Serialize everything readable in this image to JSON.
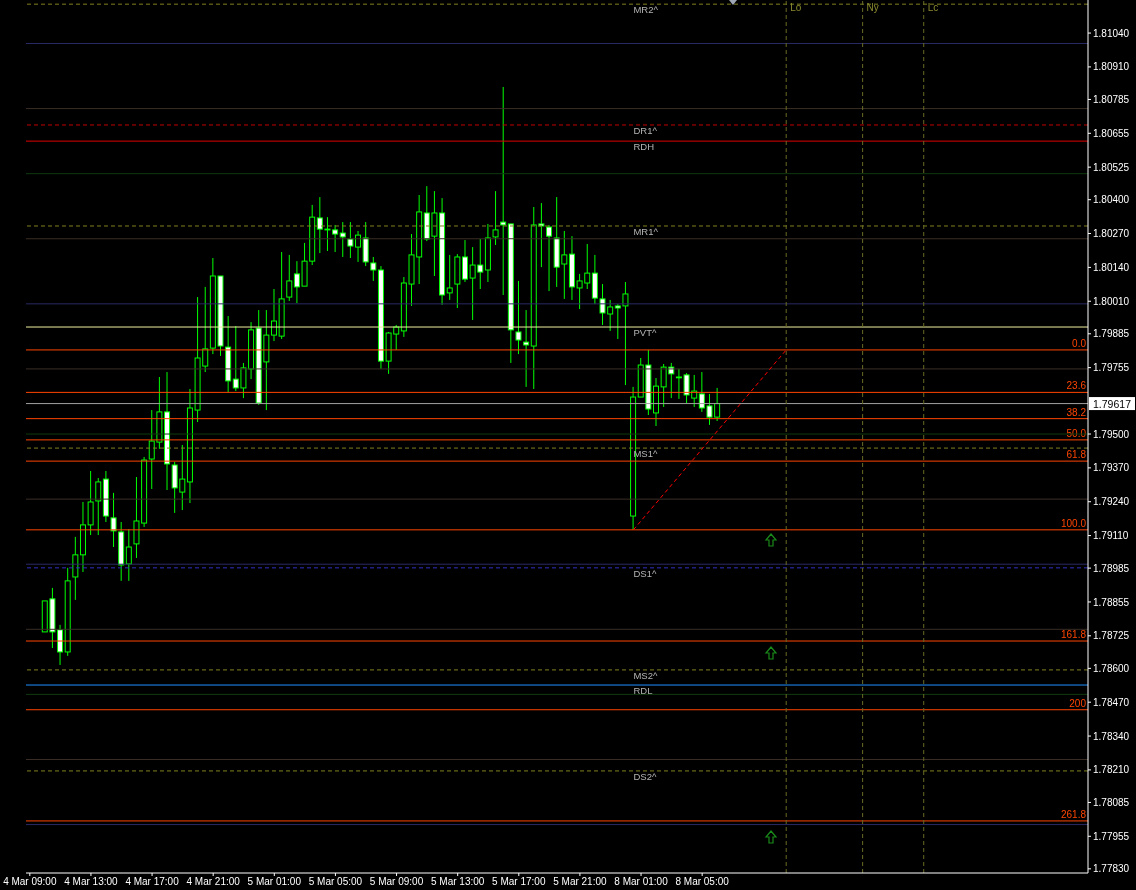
{
  "chart_data": {
    "type": "candlestick",
    "color": "#00ff00",
    "categories": [
      "4 Mar 09:00",
      null,
      null,
      null,
      null,
      null,
      null,
      null,
      "4 Mar 13:00",
      null,
      null,
      null,
      null,
      null,
      null,
      null,
      "4 Mar 17:00",
      null,
      null,
      null,
      null,
      null,
      null,
      null,
      "4 Mar 21:00",
      null,
      null,
      null,
      null,
      null,
      null,
      null,
      "5 Mar 01:00",
      null,
      null,
      null,
      null,
      null,
      null,
      null,
      "5 Mar 05:00",
      null,
      null,
      null,
      null,
      null,
      null,
      null,
      "5 Mar 09:00",
      null,
      null,
      null,
      null,
      null,
      null,
      null,
      "5 Mar 13:00",
      null,
      null,
      null,
      null,
      null,
      null,
      null,
      "5 Mar 17:00",
      null,
      null,
      null,
      null,
      null,
      null,
      null,
      "5 Mar 21:00",
      null,
      null,
      null,
      null,
      null,
      null,
      null,
      "8 Mar 01:00",
      null,
      null,
      null,
      null,
      null,
      null,
      null,
      "8 Mar 05:00",
      null,
      null,
      null,
      null,
      null,
      null,
      null,
      null,
      null,
      null,
      null,
      null,
      null,
      null,
      null,
      null,
      null,
      null,
      null,
      null,
      null,
      null,
      null,
      null,
      null,
      null,
      null,
      null,
      null,
      null,
      null,
      null,
      null,
      null,
      null,
      null,
      null,
      null,
      null,
      null,
      null,
      null,
      null,
      null,
      null,
      null,
      null,
      null,
      null,
      null
    ],
    "ohlc": [
      null,
      null,
      [
        1.7874,
        1.78859,
        1.7874,
        1.78859
      ],
      [
        1.78867,
        1.78909,
        1.78678,
        1.7874
      ],
      [
        1.78748,
        1.78767,
        1.78613,
        1.78663
      ],
      [
        1.78663,
        1.78986,
        1.78648,
        1.78936
      ],
      [
        1.78951,
        1.79105,
        1.78863,
        1.79036
      ],
      [
        1.79036,
        1.79239,
        1.7897,
        1.79151
      ],
      [
        1.79151,
        1.79358,
        1.79112,
        1.79239
      ],
      [
        1.79243,
        1.79331,
        1.79112,
        1.79316
      ],
      [
        1.79327,
        1.79358,
        1.79162,
        1.79185
      ],
      [
        1.79178,
        1.79274,
        1.79066,
        1.79128
      ],
      [
        1.79124,
        1.79162,
        1.78936,
        1.78997
      ],
      [
        1.79001,
        1.79135,
        1.78936,
        1.79066
      ],
      [
        1.79078,
        1.79335,
        1.79024,
        1.79166
      ],
      [
        1.79158,
        1.79412,
        1.79143,
        1.794
      ],
      [
        1.79404,
        1.79592,
        1.79289,
        1.79473
      ],
      [
        1.79469,
        1.79719,
        1.79443,
        1.79585
      ],
      [
        1.79585,
        1.79738,
        1.79285,
        1.79385
      ],
      [
        1.79381,
        1.79393,
        1.79197,
        1.79293
      ],
      [
        1.79277,
        1.79458,
        1.79208,
        1.79327
      ],
      [
        1.79316,
        1.79673,
        1.79235,
        1.796
      ],
      [
        1.79592,
        1.80026,
        1.79546,
        1.79792
      ],
      [
        1.79761,
        1.80065,
        1.79738,
        1.79827
      ],
      [
        1.7983,
        1.80176,
        1.79807,
        1.80107
      ],
      [
        1.80107,
        1.80107,
        1.798,
        1.79838
      ],
      [
        1.79834,
        1.79953,
        1.79661,
        1.79704
      ],
      [
        1.79711,
        1.79915,
        1.79665,
        1.79677
      ],
      [
        1.79677,
        1.79773,
        1.79638,
        1.79754
      ],
      [
        1.7975,
        1.7993,
        1.79711,
        1.799
      ],
      [
        1.79907,
        1.79976,
        1.79612,
        1.79619
      ],
      [
        1.79777,
        1.79976,
        1.79592,
        1.7988
      ],
      [
        1.7988,
        1.80057,
        1.79857,
        1.79934
      ],
      [
        1.79876,
        1.80199,
        1.79865,
        1.80019
      ],
      [
        1.80026,
        1.80188,
        1.80011,
        1.80088
      ],
      [
        1.80115,
        1.80164,
        1.80003,
        1.80065
      ],
      [
        1.80068,
        1.80234,
        1.80068,
        1.80164
      ],
      [
        1.80164,
        1.8038,
        1.80149,
        1.80333
      ],
      [
        1.8033,
        1.8041,
        1.80195,
        1.80287
      ],
      [
        1.80287,
        1.80333,
        1.80203,
        1.80287
      ],
      [
        1.80284,
        1.80303,
        1.80199,
        1.80268
      ],
      [
        1.80272,
        1.80314,
        1.8018,
        1.80257
      ],
      [
        1.80249,
        1.80314,
        1.80176,
        1.80222
      ],
      [
        1.80218,
        1.8028,
        1.80161,
        1.80264
      ],
      [
        1.80253,
        1.80314,
        1.80145,
        1.80161
      ],
      [
        1.80157,
        1.8018,
        1.80088,
        1.8013
      ],
      [
        1.8013,
        1.80145,
        1.7975,
        1.7978
      ],
      [
        1.7978,
        1.79892,
        1.79731,
        1.79888
      ],
      [
        1.79884,
        1.79919,
        1.79823,
        1.79911
      ],
      [
        1.79896,
        1.80103,
        1.79873,
        1.8008
      ],
      [
        1.80076,
        1.80268,
        1.79992,
        1.80188
      ],
      [
        1.8018,
        1.80418,
        1.80076,
        1.80353
      ],
      [
        1.80349,
        1.80452,
        1.80241,
        1.80249
      ],
      [
        1.8026,
        1.80433,
        1.80107,
        1.80349
      ],
      [
        1.80349,
        1.80406,
        1.79996,
        1.80034
      ],
      [
        1.80042,
        1.80188,
        1.80015,
        1.80061
      ],
      [
        1.80076,
        1.80191,
        1.79984,
        1.8018
      ],
      [
        1.8018,
        1.80245,
        1.80084,
        1.80095
      ],
      [
        1.80099,
        1.80218,
        1.79938,
        1.80149
      ],
      [
        1.80149,
        1.80249,
        1.80057,
        1.80122
      ],
      [
        1.8013,
        1.80307,
        1.80084,
        1.80253
      ],
      [
        1.80257,
        1.80433,
        1.80226,
        1.80284
      ],
      [
        1.80314,
        1.80833,
        1.80034,
        1.80303
      ],
      [
        1.80307,
        1.80307,
        1.79773,
        1.799
      ],
      [
        1.79892,
        1.80088,
        1.79807,
        1.79861
      ],
      [
        1.79853,
        1.79976,
        1.79681,
        1.79842
      ],
      [
        1.79838,
        1.80372,
        1.79673,
        1.80303
      ],
      [
        1.80307,
        1.80387,
        1.80141,
        1.80299
      ],
      [
        1.80295,
        1.80303,
        1.80049,
        1.8026
      ],
      [
        1.80253,
        1.8041,
        1.80065,
        1.80141
      ],
      [
        1.80153,
        1.8028,
        1.80019,
        1.80188
      ],
      [
        1.80191,
        1.8026,
        1.80015,
        1.80065
      ],
      [
        1.80061,
        1.80115,
        1.7998,
        1.80088
      ],
      [
        1.8008,
        1.8023,
        1.80057,
        1.80118
      ],
      [
        1.80118,
        1.80188,
        1.79999,
        1.80022
      ],
      [
        1.80019,
        1.80076,
        1.79919,
        1.79965
      ],
      [
        1.79961,
        1.80015,
        1.79896,
        1.79988
      ],
      [
        1.79992,
        1.79999,
        1.79865,
        1.79984
      ],
      [
        1.79992,
        1.80084,
        1.79688,
        1.80038
      ],
      [
        1.79185,
        1.79681,
        1.79132,
        1.79642
      ],
      [
        1.79642,
        1.79792,
        1.79642,
        1.79765
      ],
      [
        1.79765,
        1.79823,
        1.79573,
        1.79596
      ],
      [
        1.79581,
        1.79715,
        1.79531,
        1.79684
      ],
      [
        1.79681,
        1.79769,
        1.79604,
        1.79757
      ],
      [
        1.79757,
        1.79773,
        1.79638,
        1.79731
      ],
      [
        1.79719,
        1.7975,
        1.79635,
        1.79719
      ],
      [
        1.79727,
        1.79734,
        1.79619,
        1.7965
      ],
      [
        1.79638,
        1.79727,
        1.79604,
        1.79665
      ],
      [
        1.79654,
        1.79738,
        1.79585,
        1.796
      ],
      [
        1.79608,
        1.79654,
        1.79535,
        1.79565
      ],
      [
        1.79565,
        1.79677,
        1.7955,
        1.79617
      ],
      null,
      null,
      null,
      null,
      null,
      null,
      null,
      null,
      null,
      null,
      null,
      null,
      null,
      null,
      null,
      null,
      null,
      null,
      null,
      null,
      null,
      null,
      null,
      null,
      null,
      null,
      null,
      null,
      null,
      null,
      null,
      null,
      null,
      null,
      null,
      null,
      null,
      null,
      null,
      null,
      null,
      null,
      null,
      null,
      null,
      null,
      null,
      null
    ],
    "series": [
      {
        "type": "line",
        "color": "#ff0000",
        "line_style": "dashed",
        "values": [
          null,
          null,
          null,
          null,
          null,
          null,
          null,
          null,
          null,
          null,
          null,
          null,
          null,
          null,
          null,
          null,
          null,
          null,
          null,
          null,
          null,
          null,
          null,
          null,
          null,
          null,
          null,
          null,
          null,
          null,
          null,
          null,
          null,
          null,
          null,
          null,
          null,
          null,
          null,
          null,
          null,
          null,
          null,
          null,
          null,
          null,
          null,
          null,
          null,
          null,
          null,
          null,
          null,
          null,
          null,
          null,
          null,
          null,
          null,
          null,
          null,
          null,
          null,
          null,
          null,
          null,
          null,
          null,
          null,
          null,
          null,
          null,
          null,
          null,
          null,
          null,
          null,
          null,
          null,
          1.79132,
          null,
          null,
          null,
          null,
          null,
          null,
          null,
          null,
          null,
          null,
          null,
          null,
          null,
          null,
          null,
          null,
          null,
          null,
          null,
          1.79823,
          null,
          null,
          null,
          null,
          null,
          null,
          null,
          null,
          null,
          null,
          null,
          null,
          null,
          null,
          null,
          null,
          null,
          null,
          null,
          null,
          null,
          null,
          null,
          null,
          null,
          null,
          null,
          null,
          null,
          null,
          null,
          null,
          null,
          null,
          null,
          null,
          null,
          null,
          null
        ]
      }
    ],
    "ylim": [
      1.77814,
      1.81167
    ],
    "yticks": [
      {
        "value": 1.8104,
        "label": "1.81040"
      },
      {
        "value": 1.8091,
        "label": "1.80910"
      },
      {
        "value": 1.80785,
        "label": "1.80785"
      },
      {
        "value": 1.80655,
        "label": "1.80655"
      },
      {
        "value": 1.80525,
        "label": "1.80525"
      },
      {
        "value": 1.804,
        "label": "1.80400"
      },
      {
        "value": 1.8027,
        "label": "1.80270"
      },
      {
        "value": 1.8014,
        "label": "1.80140"
      },
      {
        "value": 1.8001,
        "label": "1.80010"
      },
      {
        "value": 1.79885,
        "label": "1.79885"
      },
      {
        "value": 1.79755,
        "label": "1.79755"
      },
      {
        "value": 1.795,
        "label": "1.79500"
      },
      {
        "value": 1.7937,
        "label": "1.79370"
      },
      {
        "value": 1.7924,
        "label": "1.79240"
      },
      {
        "value": 1.7911,
        "label": "1.79110"
      },
      {
        "value": 1.78985,
        "label": "1.78985"
      },
      {
        "value": 1.78855,
        "label": "1.78855"
      },
      {
        "value": 1.78725,
        "label": "1.78725"
      },
      {
        "value": 1.786,
        "label": "1.78600"
      },
      {
        "value": 1.7847,
        "label": "1.78470"
      },
      {
        "value": 1.7834,
        "label": "1.78340"
      },
      {
        "value": 1.7821,
        "label": "1.78210"
      },
      {
        "value": 1.78085,
        "label": "1.78085"
      },
      {
        "value": 1.77955,
        "label": "1.77955"
      },
      {
        "value": 1.7783,
        "label": "1.77830"
      }
    ],
    "annotations": [
      "Lo",
      "Ny",
      "Lc"
    ],
    "y2lim": [
      290.74,
      -194.5
    ],
    "ref_lines": [
      {
        "axis": "y",
        "value": 1.81151,
        "label": "MR2^",
        "color": "#808020",
        "line_style": "dashed"
      },
      {
        "axis": "y",
        "value": 1.80687,
        "label": "DR1^",
        "color": "#c00000",
        "line_style": "dashed"
      },
      {
        "axis": "y",
        "value": 1.80625,
        "label": "RDH",
        "color": "#e00000",
        "line_style": "solid"
      },
      {
        "axis": "y",
        "value": 1.80299,
        "label": "MR1^",
        "color": "#808020",
        "line_style": "dashed"
      },
      {
        "axis": "y",
        "value": 1.79911,
        "label": "PVT^",
        "color": "#f0f0a0",
        "line_style": "solid"
      },
      {
        "axis": "y",
        "value": 1.79446,
        "label": "MS1^",
        "color": "#808020",
        "line_style": "dashed"
      },
      {
        "axis": "y",
        "value": 1.78986,
        "label": "DS1^",
        "color": "#3030c0",
        "line_style": "dashed"
      },
      {
        "axis": "y",
        "value": 1.78594,
        "label": "MS2^",
        "color": "#808020",
        "line_style": "dashed"
      },
      {
        "axis": "y",
        "value": 1.78536,
        "label": "RDL",
        "color": "#1e90ff",
        "line_style": "solid"
      },
      {
        "axis": "y",
        "value": 1.78206,
        "label": "DS2^",
        "color": "#808020",
        "line_style": "dashed"
      },
      {
        "axis": "y2",
        "value": 0.0,
        "label": "0.0",
        "color": "#ff4500",
        "line_style": "solid"
      },
      {
        "axis": "y2",
        "value": 23.6,
        "label": "23.6",
        "color": "#ff4500",
        "line_style": "solid"
      },
      {
        "axis": "y2",
        "value": 38.2,
        "label": "38.2",
        "color": "#ff4500",
        "line_style": "solid"
      },
      {
        "axis": "y2",
        "value": 50.0,
        "label": "50.0",
        "color": "#ff4500",
        "line_style": "solid"
      },
      {
        "axis": "y2",
        "value": 61.8,
        "label": "61.8",
        "color": "#ff4500",
        "line_style": "solid"
      },
      {
        "axis": "y2",
        "value": 100.0,
        "label": "100.0",
        "color": "#ff4500",
        "line_style": "solid"
      },
      {
        "axis": "y2",
        "value": 161.8,
        "label": "161.8",
        "color": "#ff4500",
        "line_style": "solid"
      },
      {
        "axis": "y2",
        "value": 200,
        "label": "200",
        "color": "#ff4500",
        "line_style": "solid"
      },
      {
        "axis": "y2",
        "value": 261.8,
        "label": "261.8",
        "color": "#ff4500",
        "line_style": "solid"
      },
      {
        "axis": "y",
        "value": 1.81,
        "color": "#2a2a66",
        "line_style": "solid"
      },
      {
        "axis": "y",
        "value": 1.8075,
        "color": "#3a2e26",
        "line_style": "solid"
      },
      {
        "axis": "y",
        "value": 1.805,
        "color": "#0f3a0f",
        "line_style": "solid"
      },
      {
        "axis": "y",
        "value": 1.8025,
        "color": "#3a2e26",
        "line_style": "solid"
      },
      {
        "axis": "y",
        "value": 1.8,
        "color": "#2a2a66",
        "line_style": "solid"
      },
      {
        "axis": "y",
        "value": 1.7975,
        "color": "#3a2e26",
        "line_style": "solid"
      },
      {
        "axis": "y",
        "value": 1.795,
        "color": "#0f3a0f",
        "line_style": "solid"
      },
      {
        "axis": "y",
        "value": 1.7925,
        "color": "#3a2e26",
        "line_style": "solid"
      },
      {
        "axis": "y",
        "value": 1.79,
        "color": "#2a2a66",
        "line_style": "solid"
      },
      {
        "axis": "y",
        "value": 1.7875,
        "color": "#3a2e26",
        "line_style": "solid"
      },
      {
        "axis": "y",
        "value": 1.785,
        "color": "#0f3a0f",
        "line_style": "solid"
      },
      {
        "axis": "y",
        "value": 1.7825,
        "color": "#3a2e26",
        "line_style": "solid"
      },
      {
        "axis": "y",
        "value": 1.78,
        "color": "#2a2a66",
        "line_style": "solid"
      },
      {
        "axis": "y",
        "value": 1.79617,
        "label": "1.79617",
        "color": "#a0a0a0",
        "line_style": "solid"
      }
    ]
  }
}
